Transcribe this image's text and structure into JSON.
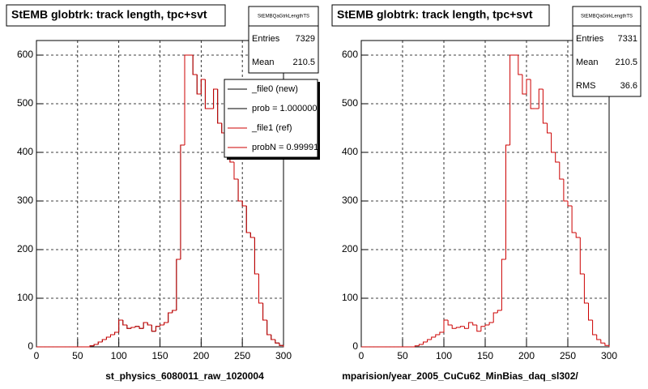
{
  "chart_data": [
    {
      "type": "histogram",
      "title": "StEMB globtrk: track length, tpc+svt",
      "xlabel": "st_physics_6080011_raw_1020004",
      "stats": {
        "title": "StEMBQaGtrkLengthTS",
        "rows": [
          {
            "label": "Entries",
            "value": 7329
          },
          {
            "label": "Mean",
            "value": 210.5
          }
        ]
      },
      "bins": [
        0,
        5,
        10,
        15,
        20,
        25,
        30,
        35,
        40,
        45,
        50,
        55,
        60,
        65,
        70,
        75,
        80,
        85,
        90,
        95,
        100,
        105,
        110,
        115,
        120,
        125,
        130,
        135,
        140,
        145,
        150,
        155,
        160,
        165,
        170,
        175,
        180,
        185,
        190,
        195,
        200,
        205,
        210,
        215,
        220,
        225,
        230,
        235,
        240,
        245,
        250,
        255,
        260,
        265,
        270,
        275,
        280,
        285,
        290,
        295,
        300
      ],
      "series": [
        {
          "name": "_file0 (new)",
          "note": "prob = 1.000000",
          "color": "#000000",
          "values": [
            0,
            0,
            0,
            0,
            0,
            0,
            0,
            0,
            0,
            0,
            0,
            0,
            0,
            2,
            5,
            10,
            15,
            20,
            25,
            30,
            55,
            45,
            38,
            40,
            42,
            38,
            50,
            45,
            32,
            42,
            45,
            50,
            70,
            75,
            180,
            415,
            600,
            600,
            560,
            520,
            550,
            490,
            490,
            530,
            460,
            440,
            400,
            380,
            345,
            300,
            290,
            235,
            225,
            150,
            90,
            55,
            25,
            15,
            8,
            3
          ]
        },
        {
          "name": "_file1 (ref)",
          "note": "probN = 0.99991",
          "color": "#cc0000",
          "values": [
            0,
            0,
            0,
            0,
            0,
            0,
            0,
            0,
            0,
            0,
            0,
            0,
            0,
            2,
            5,
            10,
            15,
            20,
            25,
            30,
            55,
            45,
            38,
            40,
            42,
            38,
            50,
            45,
            32,
            42,
            45,
            50,
            70,
            75,
            180,
            415,
            600,
            600,
            560,
            520,
            550,
            490,
            490,
            530,
            460,
            440,
            400,
            380,
            345,
            300,
            290,
            235,
            225,
            150,
            90,
            55,
            25,
            15,
            8,
            3
          ]
        }
      ],
      "xlim": [
        0,
        300
      ],
      "ylim": [
        0,
        630
      ],
      "xticks": [
        0,
        50,
        100,
        150,
        200,
        250,
        300
      ],
      "yticks": [
        0,
        100,
        200,
        300,
        400,
        500,
        600
      ],
      "grid": true
    },
    {
      "type": "histogram",
      "title": "StEMB globtrk: track length, tpc+svt",
      "xlabel": "mparision/year_2005_CuCu62_MinBias_daq_sl302/",
      "stats": {
        "title": "StEMBQaGtrkLengthTS",
        "rows": [
          {
            "label": "Entries",
            "value": 7331
          },
          {
            "label": "Mean",
            "value": 210.5
          },
          {
            "label": "RMS",
            "value": 36.6
          }
        ]
      },
      "bins": [
        0,
        5,
        10,
        15,
        20,
        25,
        30,
        35,
        40,
        45,
        50,
        55,
        60,
        65,
        70,
        75,
        80,
        85,
        90,
        95,
        100,
        105,
        110,
        115,
        120,
        125,
        130,
        135,
        140,
        145,
        150,
        155,
        160,
        165,
        170,
        175,
        180,
        185,
        190,
        195,
        200,
        205,
        210,
        215,
        220,
        225,
        230,
        235,
        240,
        245,
        250,
        255,
        260,
        265,
        270,
        275,
        280,
        285,
        290,
        295,
        300
      ],
      "series": [
        {
          "color": "#cc0000",
          "values": [
            0,
            0,
            0,
            0,
            0,
            0,
            0,
            0,
            0,
            0,
            0,
            0,
            0,
            2,
            5,
            10,
            15,
            20,
            25,
            30,
            55,
            45,
            38,
            40,
            42,
            38,
            50,
            45,
            32,
            42,
            45,
            50,
            70,
            75,
            180,
            415,
            600,
            600,
            560,
            520,
            550,
            490,
            490,
            530,
            460,
            440,
            400,
            380,
            345,
            300,
            290,
            235,
            225,
            150,
            90,
            55,
            25,
            15,
            8,
            3
          ]
        }
      ],
      "xlim": [
        0,
        300
      ],
      "ylim": [
        0,
        630
      ],
      "xticks": [
        0,
        50,
        100,
        150,
        200,
        250,
        300
      ],
      "yticks": [
        0,
        100,
        200,
        300,
        400,
        500,
        600
      ],
      "grid": true
    }
  ]
}
